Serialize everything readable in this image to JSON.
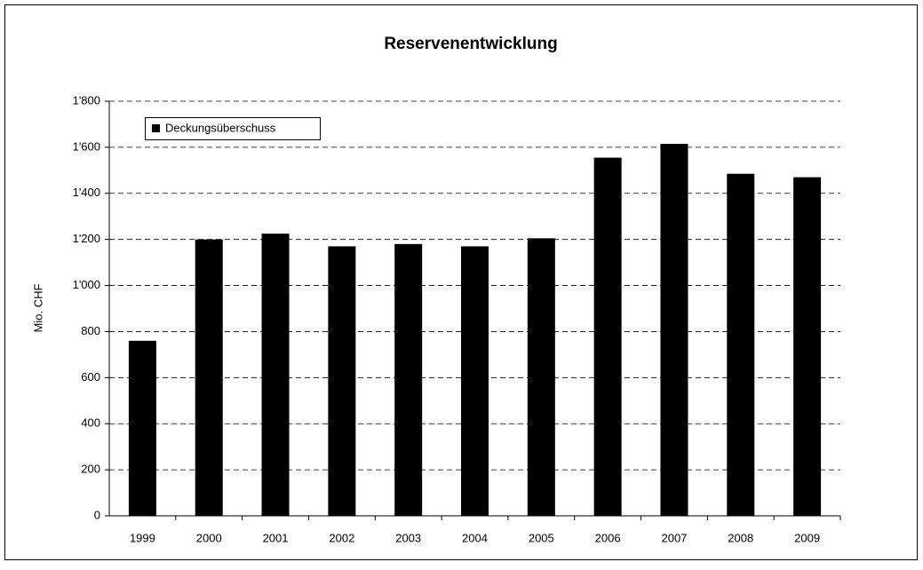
{
  "chart_data": {
    "type": "bar",
    "title": "Reservenentwicklung",
    "y_label": "Mio. CHF",
    "categories": [
      "1999",
      "2000",
      "2001",
      "2002",
      "2003",
      "2004",
      "2005",
      "2006",
      "2007",
      "2008",
      "2009"
    ],
    "series": [
      {
        "name": "Deckungsüberschuss",
        "color": "#000000",
        "values": [
          760,
          1200,
          1225,
          1170,
          1180,
          1170,
          1205,
          1555,
          1615,
          1485,
          1470
        ]
      }
    ],
    "ylim": [
      0,
      1800
    ],
    "yticks": [
      0,
      200,
      400,
      600,
      800,
      {
        "value": 1000,
        "label": "1'000"
      },
      {
        "value": 1200,
        "label": "1'200"
      },
      {
        "value": 1400,
        "label": "1'400"
      },
      {
        "value": 1600,
        "label": "1'600"
      },
      {
        "value": 1800,
        "label": "1'800"
      }
    ],
    "grid": true,
    "legend": "upper left"
  }
}
